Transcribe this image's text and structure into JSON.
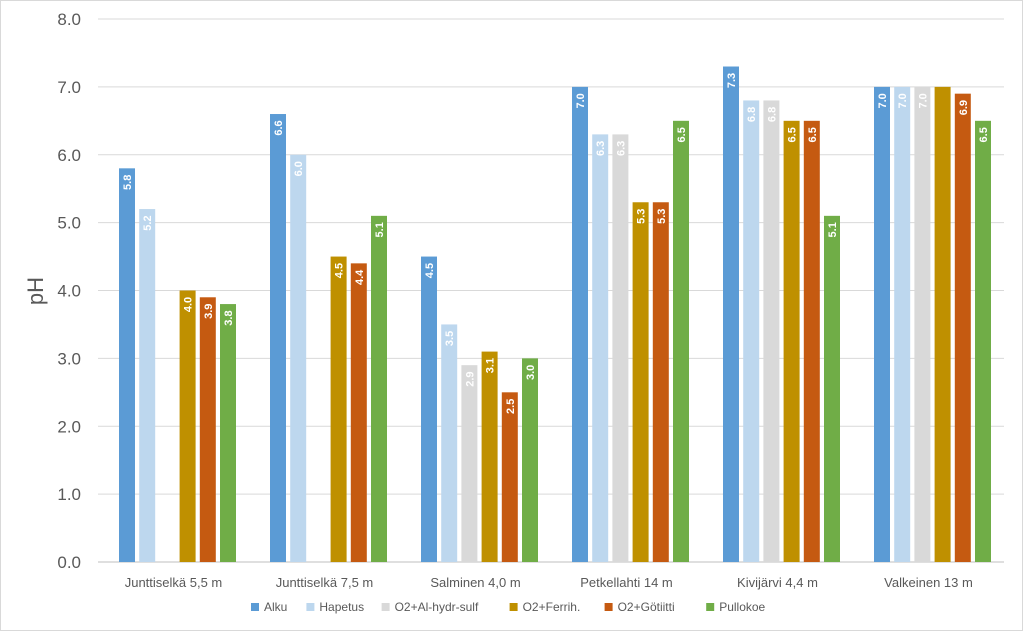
{
  "chart_data": {
    "type": "bar",
    "title": "",
    "xlabel": "",
    "ylabel": "pH",
    "ylim": [
      0,
      8
    ],
    "yticks": [
      "0.0",
      "1.0",
      "2.0",
      "3.0",
      "4.0",
      "5.0",
      "6.0",
      "7.0",
      "8.0"
    ],
    "grid": true,
    "legend_position": "bottom",
    "categories": [
      "Junttiselkä 5,5 m",
      "Junttiselkä 7,5 m",
      "Salminen 4,0 m",
      "Petkellahti 14 m",
      "Kivijärvi 4,4 m",
      "Valkeinen 13 m"
    ],
    "series": [
      {
        "name": "Alku",
        "color": "#5b9bd5",
        "values": [
          5.8,
          6.6,
          4.5,
          7.0,
          7.3,
          7.0
        ],
        "labels": [
          "5.8",
          "6.6",
          "4.5",
          "7.0",
          "7.3",
          "7.0"
        ]
      },
      {
        "name": "Hapetus",
        "color": "#bdd7ee",
        "values": [
          5.2,
          6.0,
          3.5,
          6.3,
          6.8,
          7.0
        ],
        "labels": [
          "5.2",
          "6.0",
          "3.5",
          "6.3",
          "6.8",
          "7.0"
        ]
      },
      {
        "name": "O2+Al-hydr-sulf",
        "color": "#d9d9d9",
        "values": [
          null,
          null,
          2.9,
          6.3,
          6.8,
          7.0
        ],
        "labels": [
          null,
          null,
          "2.9",
          "6.3",
          "6.8",
          "7.0"
        ]
      },
      {
        "name": "O2+Ferrih.",
        "color": "#bf9000",
        "values": [
          4.0,
          4.5,
          3.1,
          5.3,
          6.5,
          7.0
        ],
        "labels": [
          "4.0",
          "4.5",
          "3.1",
          "5.3",
          "6.5",
          null
        ]
      },
      {
        "name": "O2+Götiitti",
        "color": "#c55a11",
        "values": [
          3.9,
          4.4,
          2.5,
          5.3,
          6.5,
          6.9
        ],
        "labels": [
          "3.9",
          "4.4",
          "2.5",
          "5.3",
          "6.5",
          "6.9"
        ]
      },
      {
        "name": "Pullokoe",
        "color": "#70ad47",
        "values": [
          3.8,
          5.1,
          3.0,
          6.5,
          5.1,
          6.5
        ],
        "labels": [
          "3.8",
          "5.1",
          "3.0",
          "6.5",
          "5.1",
          "6.5"
        ]
      }
    ]
  }
}
